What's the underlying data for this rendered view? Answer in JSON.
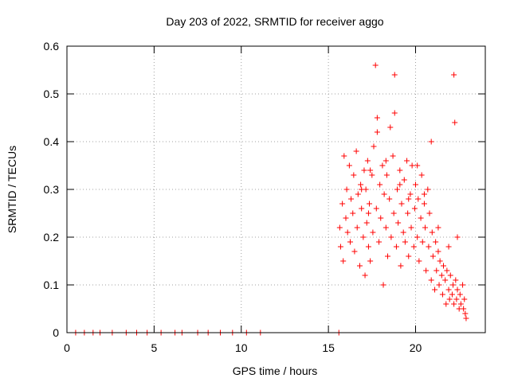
{
  "chart_data": {
    "type": "scatter",
    "title": "Day 203 of 2022, SRMTID for receiver aggo",
    "xlabel": "GPS time / hours",
    "ylabel": "SRMTID / TECUs",
    "xlim": [
      0,
      24
    ],
    "ylim": [
      0,
      0.6
    ],
    "xticks": [
      0,
      5,
      10,
      15,
      20
    ],
    "yticks": [
      0,
      0.1,
      0.2,
      0.3,
      0.4,
      0.5,
      0.6
    ],
    "xtick_labels": [
      "0",
      "5",
      "10",
      "15",
      "20"
    ],
    "ytick_labels": [
      "0",
      "0.1",
      "0.2",
      "0.3",
      "0.4",
      "0.5",
      "0.6"
    ],
    "grid": true,
    "marker": "+",
    "color": "#ff0000",
    "series": [
      {
        "name": "SRMTID",
        "x": [
          0.5,
          1.0,
          1.5,
          1.9,
          2.6,
          3.4,
          4.0,
          4.6,
          5.4,
          6.2,
          6.6,
          7.5,
          8.1,
          8.8,
          9.5,
          10.3,
          11.1,
          15.6,
          15.65,
          15.7,
          15.8,
          15.85,
          15.9,
          16.0,
          16.05,
          16.1,
          16.2,
          16.25,
          16.3,
          16.4,
          16.45,
          16.5,
          16.6,
          16.65,
          16.7,
          16.8,
          16.85,
          16.9,
          17.0,
          17.05,
          17.1,
          17.15,
          17.2,
          17.25,
          17.3,
          17.35,
          17.4,
          17.5,
          17.55,
          17.6,
          17.7,
          17.75,
          17.8,
          17.9,
          17.95,
          18.0,
          18.1,
          18.15,
          18.2,
          18.3,
          18.35,
          18.4,
          18.5,
          18.55,
          18.6,
          18.7,
          18.75,
          18.8,
          18.9,
          18.95,
          19.0,
          19.1,
          19.15,
          19.2,
          19.3,
          19.35,
          19.4,
          19.5,
          19.55,
          19.6,
          19.7,
          19.75,
          19.8,
          19.9,
          19.95,
          20.0,
          20.1,
          20.15,
          20.2,
          20.3,
          20.35,
          20.4,
          20.5,
          20.55,
          20.6,
          20.7,
          20.75,
          20.8,
          20.9,
          20.95,
          21.0,
          21.1,
          21.15,
          21.2,
          21.3,
          21.35,
          21.4,
          21.5,
          21.55,
          21.6,
          21.7,
          21.75,
          21.8,
          21.9,
          21.95,
          22.0,
          22.1,
          22.15,
          22.2,
          22.3,
          22.35,
          22.4,
          22.5,
          22.55,
          22.6,
          22.7,
          22.75,
          22.8,
          22.85,
          22.9,
          16.9,
          17.3,
          17.4,
          17.8,
          18.3,
          18.8,
          19.1,
          19.6,
          20.1,
          20.5,
          20.9,
          21.3,
          21.9,
          22.2,
          22.25,
          22.4
        ],
        "y": [
          0,
          0,
          0,
          0,
          0,
          0,
          0,
          0,
          0,
          0,
          0,
          0,
          0,
          0,
          0,
          0,
          0,
          0.0,
          0.22,
          0.18,
          0.27,
          0.15,
          0.37,
          0.24,
          0.3,
          0.21,
          0.35,
          0.19,
          0.28,
          0.25,
          0.33,
          0.17,
          0.38,
          0.22,
          0.29,
          0.14,
          0.31,
          0.26,
          0.2,
          0.34,
          0.12,
          0.3,
          0.23,
          0.36,
          0.18,
          0.27,
          0.15,
          0.33,
          0.21,
          0.39,
          0.56,
          0.26,
          0.45,
          0.19,
          0.31,
          0.24,
          0.35,
          0.1,
          0.29,
          0.22,
          0.33,
          0.16,
          0.28,
          0.43,
          0.2,
          0.37,
          0.25,
          0.54,
          0.18,
          0.3,
          0.23,
          0.34,
          0.14,
          0.27,
          0.21,
          0.32,
          0.19,
          0.36,
          0.25,
          0.16,
          0.29,
          0.22,
          0.35,
          0.18,
          0.26,
          0.31,
          0.2,
          0.28,
          0.15,
          0.24,
          0.33,
          0.19,
          0.27,
          0.22,
          0.13,
          0.3,
          0.18,
          0.25,
          0.11,
          0.21,
          0.16,
          0.09,
          0.19,
          0.13,
          0.17,
          0.1,
          0.15,
          0.12,
          0.08,
          0.14,
          0.11,
          0.06,
          0.13,
          0.09,
          0.07,
          0.12,
          0.08,
          0.1,
          0.06,
          0.11,
          0.07,
          0.09,
          0.05,
          0.08,
          0.06,
          0.1,
          0.05,
          0.07,
          0.04,
          0.03,
          0.3,
          0.25,
          0.34,
          0.42,
          0.36,
          0.46,
          0.31,
          0.28,
          0.35,
          0.29,
          0.4,
          0.22,
          0.18,
          0.54,
          0.44,
          0.2
        ]
      }
    ]
  }
}
